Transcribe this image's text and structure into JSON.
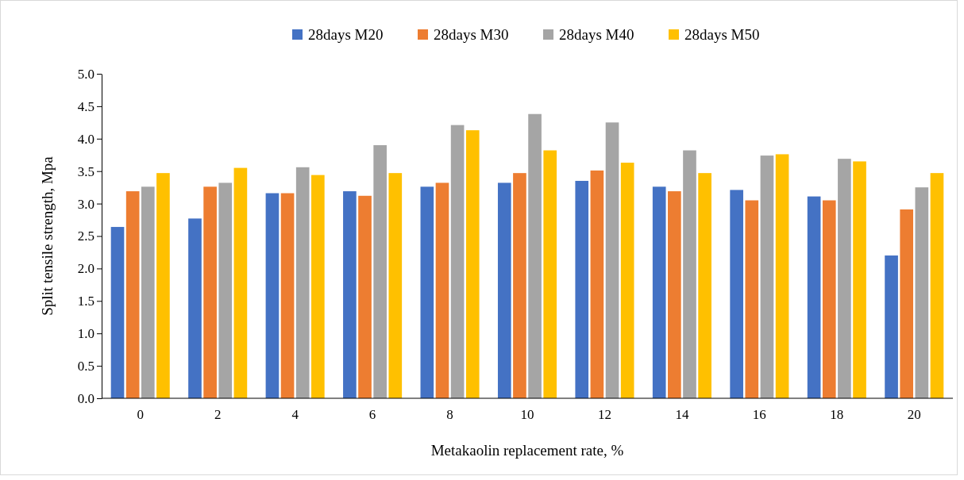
{
  "chart_data": {
    "type": "bar",
    "xlabel": "Metakaolin  replacement rate, %",
    "ylabel": "Split tensile strength, Mpa",
    "categories": [
      "0",
      "2",
      "4",
      "6",
      "8",
      "10",
      "12",
      "14",
      "16",
      "18",
      "20"
    ],
    "series": [
      {
        "name": "28days M20",
        "color": "#4472c4",
        "values": [
          2.64,
          2.77,
          3.16,
          3.19,
          3.26,
          3.32,
          3.35,
          3.26,
          3.21,
          3.11,
          2.2
        ]
      },
      {
        "name": "28days M30",
        "color": "#ed7d31",
        "values": [
          3.19,
          3.26,
          3.16,
          3.12,
          3.32,
          3.47,
          3.51,
          3.19,
          3.05,
          3.05,
          2.91
        ]
      },
      {
        "name": "28days M40",
        "color": "#a5a5a5",
        "values": [
          3.26,
          3.32,
          3.56,
          3.9,
          4.21,
          4.38,
          4.25,
          3.82,
          3.74,
          3.69,
          3.25
        ]
      },
      {
        "name": "28days M50",
        "color": "#ffc000",
        "values": [
          3.47,
          3.55,
          3.44,
          3.47,
          4.13,
          3.82,
          3.63,
          3.47,
          3.76,
          3.65,
          3.47
        ]
      }
    ],
    "ylim": [
      0,
      5
    ],
    "yticks": [
      {
        "value": 0,
        "label": "0.0"
      },
      {
        "value": 0.5,
        "label": "0.5"
      },
      {
        "value": 1,
        "label": "1.0"
      },
      {
        "value": 1.5,
        "label": "1.5"
      },
      {
        "value": 2,
        "label": "2.0"
      },
      {
        "value": 2.5,
        "label": "2.5"
      },
      {
        "value": 3,
        "label": "3.0"
      },
      {
        "value": 3.5,
        "label": "3.5"
      },
      {
        "value": 4,
        "label": "4.0"
      },
      {
        "value": 4.5,
        "label": "4.5"
      },
      {
        "value": 5,
        "label": "5.0"
      }
    ],
    "legend": "top",
    "grid": false
  }
}
